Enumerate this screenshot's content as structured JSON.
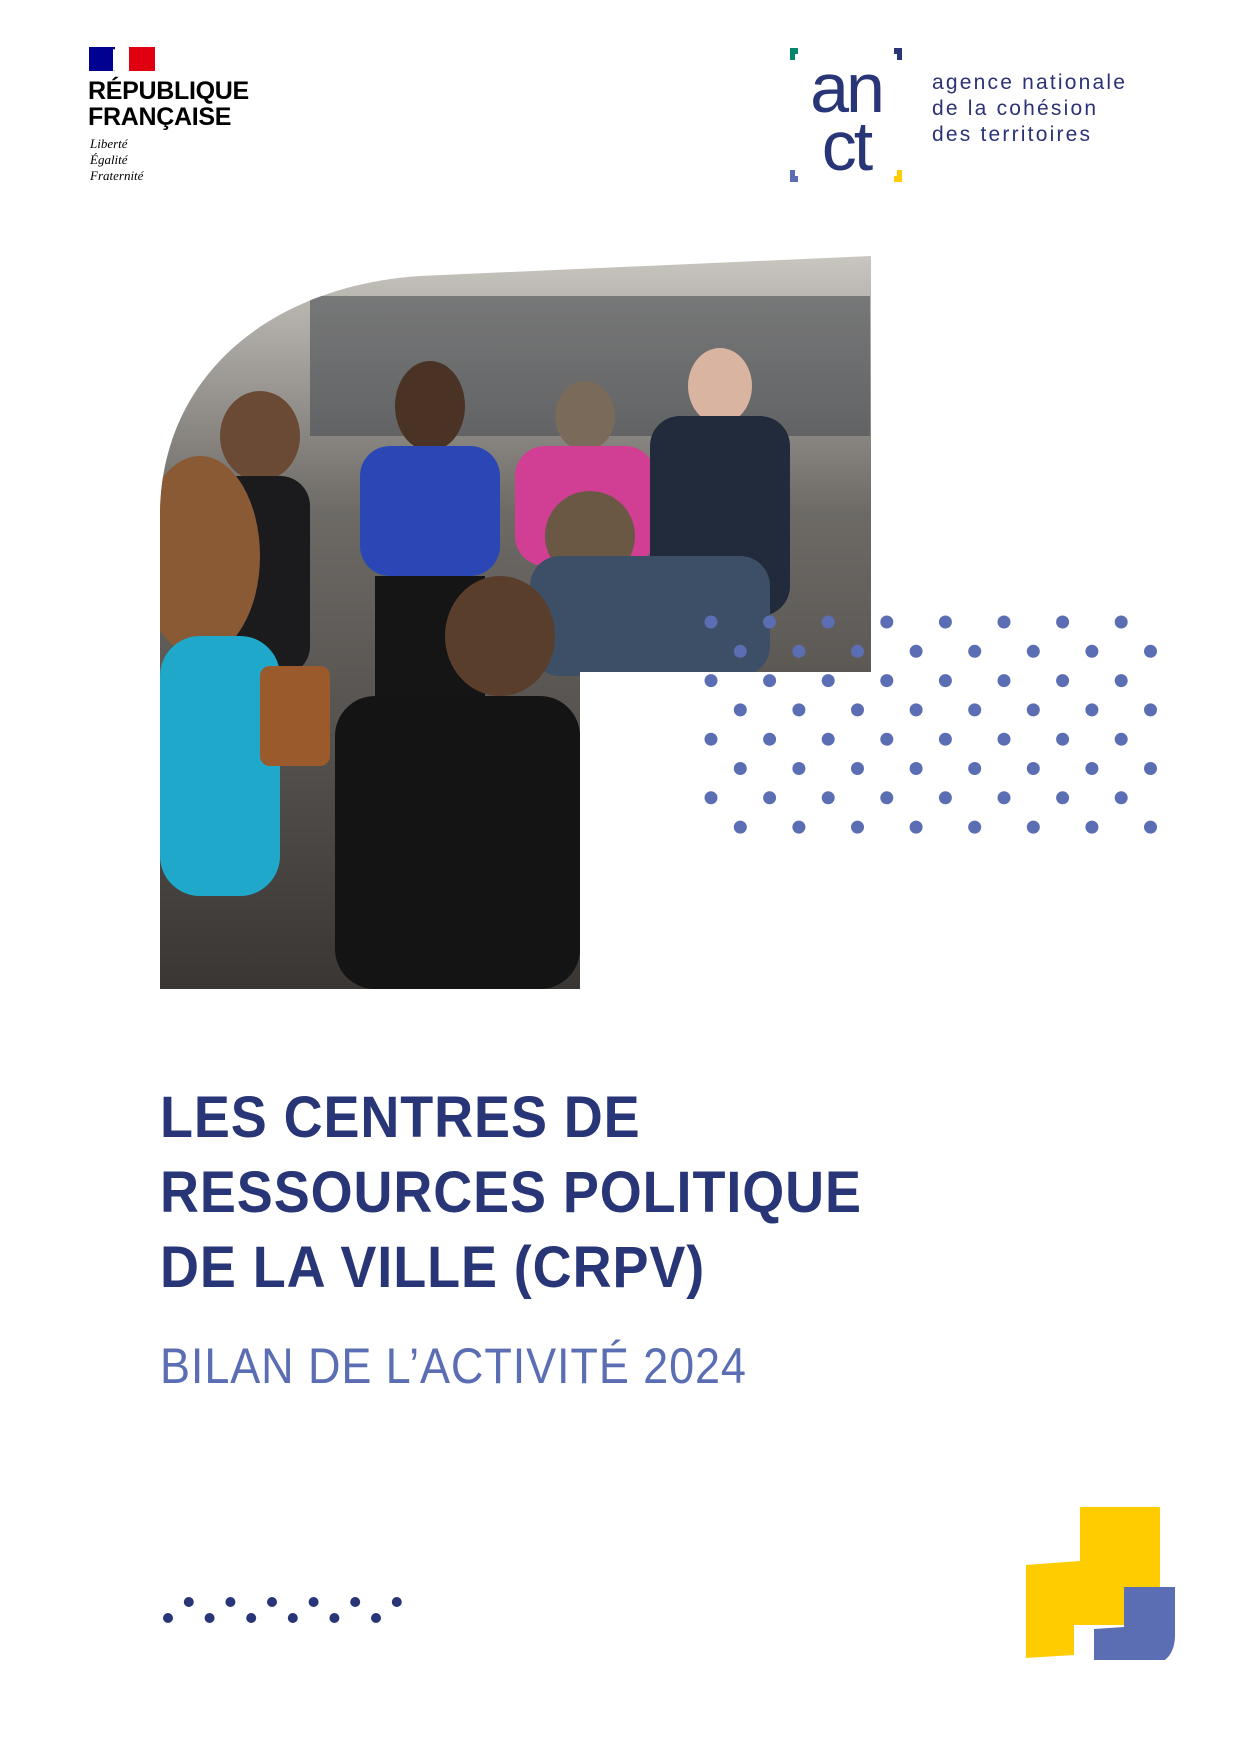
{
  "header": {
    "republique_logo": {
      "name_lines": [
        "RÉPUBLIQUE",
        "FRANÇAISE"
      ],
      "devise": [
        "Liberté",
        "Égalité",
        "Fraternité"
      ]
    },
    "anct_logo": {
      "letters": [
        "an",
        "ct"
      ],
      "name_lines": [
        "agence nationale",
        "de la cohésion",
        "des territoires"
      ],
      "colors": {
        "navy": "#283577",
        "green": "#00866b",
        "periwinkle": "#5b6eb3",
        "yellow": "#ffcc00"
      }
    }
  },
  "cover": {
    "photo": "group-discussion-photo",
    "title_lines": [
      "LES CENTRES DE",
      "RESSOURCES POLITIQUE",
      "DE LA VILLE (CRPV)"
    ],
    "subtitle": "BILAN DE L’ACTIVITÉ 2024"
  },
  "colors": {
    "title": "#283577",
    "subtitle": "#5b6eb3",
    "dots": "#5b6eb3",
    "accent_yellow": "#ffcc00"
  }
}
